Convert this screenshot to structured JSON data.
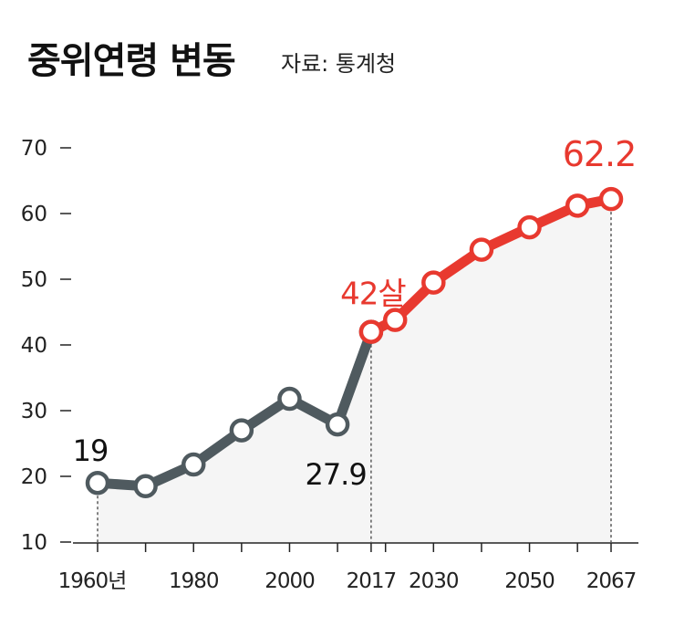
{
  "title": "중위연령 변동",
  "source": "자료: 통계청",
  "colors": {
    "past": "#4f5a5f",
    "future": "#e8392f",
    "fill": "#f5f5f5",
    "text": "#111111"
  },
  "chart_data": {
    "type": "line",
    "title": "중위연령 변동",
    "xlabel": "",
    "ylabel": "",
    "ylim": [
      10,
      70
    ],
    "yticks": [
      10,
      20,
      30,
      40,
      50,
      60,
      70
    ],
    "xticks": [
      1960,
      1980,
      2000,
      2017,
      2030,
      2050,
      2067
    ],
    "xtick_labels": [
      "1960년",
      "1980",
      "2000",
      "2017",
      "2030",
      "2050",
      "2067"
    ],
    "grid": false,
    "series": [
      {
        "x": [
          1960,
          1970,
          1980,
          1990,
          2000,
          2010,
          2017
        ],
        "values": [
          19,
          18.5,
          21.8,
          27,
          31.8,
          27.9,
          42
        ]
      },
      {
        "x": [
          2017,
          2022,
          2030,
          2040,
          2050,
          2060,
          2067
        ],
        "values": [
          42,
          43.8,
          49.5,
          54.5,
          57.9,
          61.2,
          62.2
        ]
      }
    ],
    "annotations": [
      {
        "x": 1960,
        "y": 19,
        "text": "19",
        "color": "#111111",
        "pos": "above"
      },
      {
        "x": 2010,
        "y": 27.9,
        "text": "27.9",
        "color": "#111111",
        "pos": "below"
      },
      {
        "x": 2017,
        "y": 42,
        "text": "42살",
        "color": "#e8392f",
        "pos": "above"
      },
      {
        "x": 2067,
        "y": 62.2,
        "text": "62.2",
        "color": "#e8392f",
        "pos": "above"
      }
    ]
  }
}
